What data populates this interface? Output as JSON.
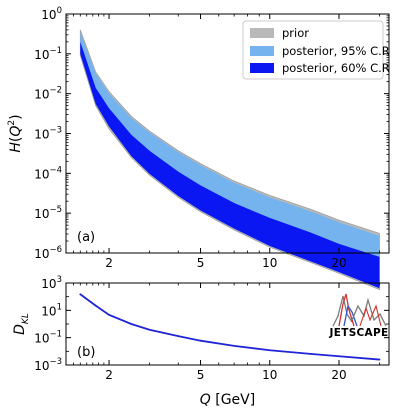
{
  "colors": {
    "prior": "#b9b9b9",
    "posterior95": "#74b3ee",
    "posterior60": "#0a17f2",
    "dkl_line": "#1f24d6",
    "axis": "#000000",
    "logo_red": "#d4302b",
    "logo_blue": "#2f57c8",
    "logo_gray": "#7a7a7a"
  },
  "logo_text": "JETSCAPE",
  "chart_data": [
    {
      "type": "area",
      "panel_label": "(a)",
      "ylabel": "H(Q²)",
      "ylabel_parts": {
        "main": "H(Q",
        "sup": "2",
        "close": ")"
      },
      "xscale": "log",
      "yscale": "log",
      "xlim": [
        1.3,
        33
      ],
      "ylim": [
        1e-06,
        1
      ],
      "x_ticks": [
        2,
        5,
        10,
        20
      ],
      "x_ticks_labels": [
        "2",
        "5",
        "10",
        "20"
      ],
      "y_ticks": [
        1e-06,
        1e-05,
        0.0001,
        0.001,
        0.01,
        0.1,
        1
      ],
      "y_tick_labels": [
        {
          "base": "10",
          "exp": "−6"
        },
        {
          "base": "10",
          "exp": "−5"
        },
        {
          "base": "10",
          "exp": "−4"
        },
        {
          "base": "10",
          "exp": "−3"
        },
        {
          "base": "10",
          "exp": "−2"
        },
        {
          "base": "10",
          "exp": "−1"
        },
        {
          "base": "10",
          "exp": "0"
        }
      ],
      "legend": {
        "placement": "top-right",
        "entries": [
          "prior",
          "posterior, 95% C.R",
          "posterior, 60% C.R"
        ]
      },
      "x": [
        1.5,
        1.75,
        2.0,
        2.5,
        3.0,
        4.0,
        5.0,
        7.0,
        10.0,
        15.0,
        20.0,
        30.0
      ],
      "series": [
        {
          "name": "prior",
          "lower": [
            0.09,
            0.005,
            0.0013,
            0.00025,
            9e-05,
            2.5e-05,
            1.08e-05,
            3.8e-06,
            1.4e-06,
            5.8e-07,
            3.1e-07,
            1.2e-07
          ],
          "upper": [
            0.4,
            0.035,
            0.0113,
            0.0027,
            0.00115,
            0.00037,
            0.000175,
            6.4e-05,
            2.8e-05,
            1.26e-05,
            6.7e-06,
            3.1e-06
          ]
        },
        {
          "name": "posterior, 95% C.R",
          "lower": [
            0.1,
            0.0055,
            0.0015,
            0.00027,
            9.71e-05,
            2.7e-05,
            1.17e-05,
            4.1e-06,
            1.5e-06,
            6.2e-07,
            3.3e-07,
            1.3e-07
          ],
          "upper": [
            0.35,
            0.032,
            0.0102,
            0.00245,
            0.00106,
            0.00034,
            0.00016,
            5.8e-05,
            2.5e-05,
            1.12e-05,
            5.9e-06,
            2.7e-06
          ]
        },
        {
          "name": "posterior, 60% C.R",
          "lower": [
            0.1,
            0.0055,
            0.0015,
            0.00027,
            9.71e-05,
            2.7e-05,
            1.17e-05,
            4.1e-06,
            1.5e-06,
            6.2e-07,
            3.3e-07,
            1.3e-07
          ],
          "upper": [
            0.2,
            0.014,
            0.0043,
            0.00093,
            0.00037,
            0.00011,
            5e-05,
            1.8e-05,
            7.6e-06,
            3.3e-06,
            1.7e-06,
            8e-07
          ]
        }
      ]
    },
    {
      "type": "line",
      "panel_label": "(b)",
      "ylabel": "D_KL",
      "ylabel_parts": {
        "main": "D",
        "sub": "KL"
      },
      "xlabel": "Q [GeV]",
      "xlabel_parts": {
        "var": "Q",
        "unit": " [GeV]"
      },
      "xscale": "log",
      "yscale": "log",
      "xlim": [
        1.3,
        33
      ],
      "ylim": [
        0.001,
        1000
      ],
      "x_ticks": [
        2,
        5,
        10,
        20
      ],
      "x_ticks_labels": [
        "2",
        "5",
        "10",
        "20"
      ],
      "y_ticks": [
        0.001,
        0.1,
        10,
        1000
      ],
      "y_tick_labels": [
        {
          "base": "10",
          "exp": "−3"
        },
        {
          "base": "10",
          "exp": "−1"
        },
        {
          "base": "10",
          "exp": "1"
        },
        {
          "base": "10",
          "exp": "3"
        }
      ],
      "series": [
        {
          "name": "",
          "x": [
            1.5,
            1.75,
            2.0,
            2.5,
            3.0,
            4.0,
            5.0,
            7.0,
            10.0,
            15.0,
            20.0,
            30.0
          ],
          "values": [
            150,
            22,
            4.7,
            1.0,
            0.38,
            0.13,
            0.06,
            0.025,
            0.012,
            0.0065,
            0.0044,
            0.0025
          ]
        }
      ]
    }
  ]
}
